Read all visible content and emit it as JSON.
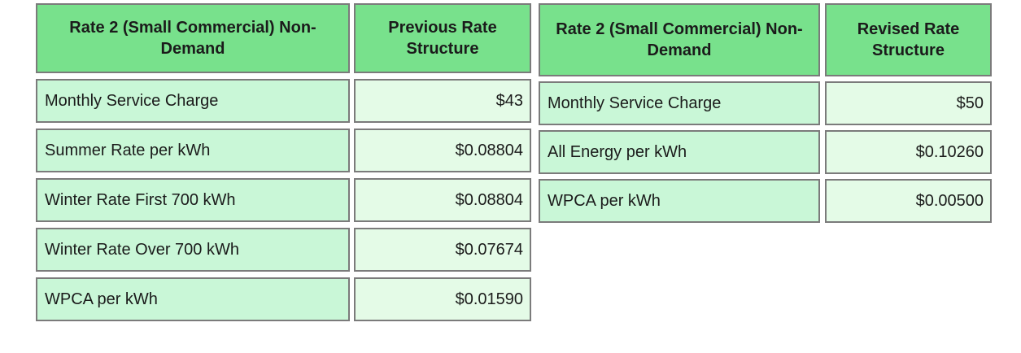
{
  "colors": {
    "header_bg": "#78e18c",
    "label_bg": "#c9f7d7",
    "value_bg": "#e4fbe7",
    "border": "#7b7b7b",
    "text": "#1b1b1b",
    "page_bg": "#ffffff"
  },
  "tables": [
    {
      "id": "previous-rate-structure",
      "header": {
        "label": "Rate 2 (Small Commercial) Non-Demand",
        "value": "Previous Rate Structure"
      },
      "rows": [
        {
          "label": "Monthly Service Charge",
          "value": "$43"
        },
        {
          "label": "Summer Rate per kWh",
          "value": "$0.08804"
        },
        {
          "label": "Winter Rate First 700 kWh",
          "value": "$0.08804"
        },
        {
          "label": "Winter Rate Over 700 kWh",
          "value": "$0.07674"
        },
        {
          "label": "WPCA per kWh",
          "value": "$0.01590"
        }
      ]
    },
    {
      "id": "revised-rate-structure",
      "header": {
        "label": "Rate 2 (Small Commercial) Non-Demand",
        "value": "Revised Rate Structure"
      },
      "rows": [
        {
          "label": "Monthly Service Charge",
          "value": "$50"
        },
        {
          "label": "All Energy per kWh",
          "value": "$0.10260"
        },
        {
          "label": "WPCA per kWh",
          "value": "$0.00500"
        }
      ]
    }
  ]
}
